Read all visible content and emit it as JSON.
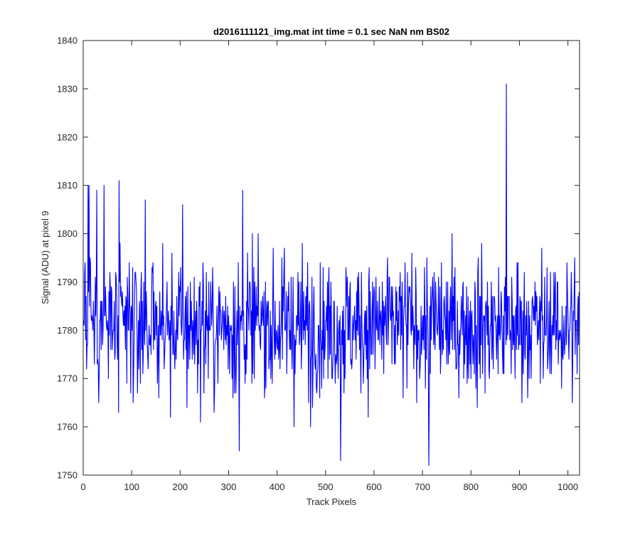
{
  "chart_data": {
    "type": "line",
    "title": "d2016111121_img.mat int time = 0.1 sec  NaN nm BS02",
    "xlabel": "Track Pixels",
    "ylabel": "Signal (ADU) at pixel 9",
    "xlim": [
      0,
      1024
    ],
    "ylim": [
      1750,
      1840
    ],
    "xticks": [
      0,
      100,
      200,
      300,
      400,
      500,
      600,
      700,
      800,
      900,
      1000
    ],
    "yticks": [
      1750,
      1760,
      1770,
      1780,
      1790,
      1800,
      1810,
      1820,
      1830,
      1840
    ],
    "grid": false,
    "line_color": "#0000ff",
    "series": [
      {
        "noise": {
          "n_points": 1024,
          "mean": 1781,
          "std": 7,
          "min": 1752,
          "max": 1831
        },
        "notable_points": [
          {
            "x": 10,
            "y": 1810
          },
          {
            "x": 12,
            "y": 1810
          },
          {
            "x": 28,
            "y": 1809
          },
          {
            "x": 43,
            "y": 1810
          },
          {
            "x": 74,
            "y": 1811
          },
          {
            "x": 73,
            "y": 1763
          },
          {
            "x": 128,
            "y": 1807
          },
          {
            "x": 180,
            "y": 1762
          },
          {
            "x": 205,
            "y": 1806
          },
          {
            "x": 270,
            "y": 1763
          },
          {
            "x": 322,
            "y": 1755
          },
          {
            "x": 329,
            "y": 1809
          },
          {
            "x": 469,
            "y": 1760
          },
          {
            "x": 531,
            "y": 1753
          },
          {
            "x": 713,
            "y": 1752
          },
          {
            "x": 873,
            "y": 1831
          },
          {
            "x": 952,
            "y": 1791
          }
        ]
      }
    ]
  }
}
